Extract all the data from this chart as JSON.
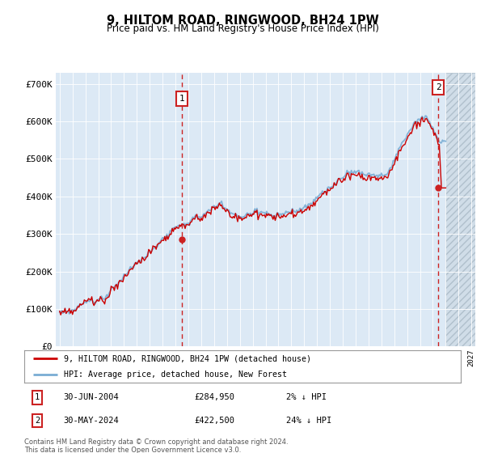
{
  "title": "9, HILTOM ROAD, RINGWOOD, BH24 1PW",
  "subtitle": "Price paid vs. HM Land Registry's House Price Index (HPI)",
  "legend_line1": "9, HILTOM ROAD, RINGWOOD, BH24 1PW (detached house)",
  "legend_line2": "HPI: Average price, detached house, New Forest",
  "annotation1": {
    "label": "1",
    "date": "30-JUN-2004",
    "price": 284950,
    "hpi_diff": "2% ↓ HPI"
  },
  "annotation2": {
    "label": "2",
    "date": "30-MAY-2024",
    "price": 422500,
    "hpi_diff": "24% ↓ HPI"
  },
  "footer": "Contains HM Land Registry data © Crown copyright and database right 2024.\nThis data is licensed under the Open Government Licence v3.0.",
  "ylim": [
    0,
    730000
  ],
  "yticks": [
    0,
    100000,
    200000,
    300000,
    400000,
    500000,
    600000,
    700000
  ],
  "ytick_labels": [
    "£0",
    "£100K",
    "£200K",
    "£300K",
    "£400K",
    "£500K",
    "£600K",
    "£700K"
  ],
  "background_color": "#dce9f5",
  "hatch_color": "#c8d8e8",
  "line_color_red": "#cc0000",
  "line_color_blue": "#7aadd4",
  "annotation_box_color": "#cc2222",
  "point1_x": 2004.5,
  "point1_y": 284950,
  "point2_x": 2024.42,
  "point2_y": 422500,
  "xmin": 1994.7,
  "xmax": 2027.3
}
